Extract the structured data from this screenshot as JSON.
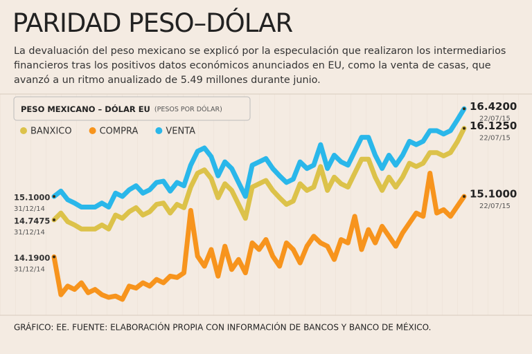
{
  "chart_data": {
    "type": "line",
    "title": "PARIDAD PESO–DÓLAR",
    "subtitle": "La devaluación del peso mexicano se explicó por la especulación que realizaron los intermediarios financieros tras los positivos datos económicos anunciados en EU, como la venta de casas, que avanzó a un ritmo anualizado de 5.49 millones durante junio.",
    "chart_title": "PESO MEXICANO – DÓLAR EU",
    "chart_unit": "(PESOS POR DÓLAR)",
    "source": "GRÁFICO: EE. FUENTE: ELABORACIÓN PROPIA CON INFORMACIÓN DE BANCOS Y BANCO DE MÉXICO.",
    "categories": [
      "31/12/14",
      null,
      null,
      null,
      null,
      null,
      null,
      null,
      null,
      null,
      null,
      null,
      null,
      null,
      null,
      null,
      null,
      null,
      null,
      null,
      null,
      null,
      null,
      null,
      null,
      null,
      null,
      null,
      null,
      null,
      null,
      null,
      null,
      null,
      null,
      null,
      null,
      null,
      null,
      null,
      null,
      null,
      null,
      null,
      null,
      null,
      null,
      null,
      null,
      null,
      null,
      null,
      null,
      null,
      null,
      null,
      null,
      null,
      null,
      null,
      "22/07/15"
    ],
    "ylim": [
      13.3,
      16.6
    ],
    "series": [
      {
        "name": "BANXICO",
        "color": "#dcc24a",
        "values": [
          14.7475,
          14.85,
          14.72,
          14.67,
          14.61,
          14.61,
          14.61,
          14.67,
          14.61,
          14.82,
          14.77,
          14.87,
          14.93,
          14.82,
          14.87,
          14.98,
          15.0,
          14.85,
          14.98,
          14.93,
          15.24,
          15.45,
          15.5,
          15.37,
          15.08,
          15.29,
          15.19,
          14.98,
          14.77,
          15.24,
          15.29,
          15.34,
          15.19,
          15.08,
          14.98,
          15.03,
          15.29,
          15.19,
          15.24,
          15.55,
          15.19,
          15.39,
          15.29,
          15.24,
          15.45,
          15.66,
          15.66,
          15.39,
          15.19,
          15.39,
          15.24,
          15.39,
          15.6,
          15.55,
          15.6,
          15.76,
          15.76,
          15.71,
          15.76,
          15.92,
          16.125
        ],
        "value_labels": [
          "14.7475",
          null,
          null,
          null,
          null,
          null,
          null,
          null,
          null,
          null,
          null,
          null,
          null,
          null,
          null,
          null,
          null,
          null,
          null,
          null,
          null,
          null,
          null,
          null,
          null,
          null,
          null,
          null,
          null,
          null,
          null,
          null,
          null,
          null,
          null,
          null,
          null,
          null,
          null,
          null,
          null,
          null,
          null,
          null,
          null,
          null,
          null,
          null,
          null,
          null,
          null,
          null,
          null,
          null,
          null,
          null,
          null,
          null,
          null,
          null,
          "16.1250"
        ]
      },
      {
        "name": "COMPRA",
        "color": "#f7941d",
        "values": [
          14.19,
          13.62,
          13.75,
          13.7,
          13.8,
          13.65,
          13.7,
          13.62,
          13.58,
          13.6,
          13.55,
          13.75,
          13.72,
          13.8,
          13.75,
          13.85,
          13.8,
          13.9,
          13.88,
          13.95,
          14.89,
          14.2,
          14.05,
          14.3,
          13.9,
          14.35,
          14.0,
          14.15,
          13.95,
          14.4,
          14.3,
          14.45,
          14.2,
          14.05,
          14.4,
          14.3,
          14.1,
          14.35,
          14.5,
          14.4,
          14.35,
          14.15,
          14.45,
          14.4,
          14.8,
          14.3,
          14.6,
          14.4,
          14.65,
          14.5,
          14.35,
          14.55,
          14.7,
          14.85,
          14.8,
          15.45,
          14.85,
          14.9,
          14.8,
          14.95,
          15.1
        ],
        "value_labels": [
          "14.1900",
          null,
          null,
          null,
          null,
          null,
          null,
          null,
          null,
          null,
          null,
          null,
          null,
          null,
          null,
          null,
          null,
          null,
          null,
          null,
          null,
          null,
          null,
          null,
          null,
          null,
          null,
          null,
          null,
          null,
          null,
          null,
          null,
          null,
          null,
          null,
          null,
          null,
          null,
          null,
          null,
          null,
          null,
          null,
          null,
          null,
          null,
          null,
          null,
          null,
          null,
          null,
          null,
          null,
          null,
          null,
          null,
          null,
          null,
          null,
          "15.1000"
        ]
      },
      {
        "name": "VENTA",
        "color": "#2ab7ea",
        "values": [
          15.1,
          15.18,
          15.05,
          15.0,
          14.94,
          14.94,
          14.94,
          15.0,
          14.94,
          15.15,
          15.1,
          15.2,
          15.26,
          15.15,
          15.2,
          15.31,
          15.33,
          15.18,
          15.31,
          15.26,
          15.57,
          15.78,
          15.83,
          15.7,
          15.41,
          15.62,
          15.52,
          15.31,
          15.1,
          15.57,
          15.62,
          15.67,
          15.52,
          15.41,
          15.31,
          15.36,
          15.62,
          15.52,
          15.57,
          15.88,
          15.52,
          15.72,
          15.62,
          15.57,
          15.78,
          15.99,
          15.99,
          15.72,
          15.52,
          15.72,
          15.57,
          15.72,
          15.93,
          15.88,
          15.93,
          16.09,
          16.09,
          16.04,
          16.09,
          16.25,
          16.42
        ],
        "value_labels": [
          "15.1000",
          null,
          null,
          null,
          null,
          null,
          null,
          null,
          null,
          null,
          null,
          null,
          null,
          null,
          null,
          null,
          null,
          null,
          null,
          null,
          null,
          null,
          null,
          null,
          null,
          null,
          null,
          null,
          null,
          null,
          null,
          null,
          null,
          null,
          null,
          null,
          null,
          null,
          null,
          null,
          null,
          null,
          null,
          null,
          null,
          null,
          null,
          null,
          null,
          null,
          null,
          null,
          null,
          null,
          null,
          null,
          null,
          null,
          null,
          null,
          "16.4200"
        ]
      }
    ]
  }
}
